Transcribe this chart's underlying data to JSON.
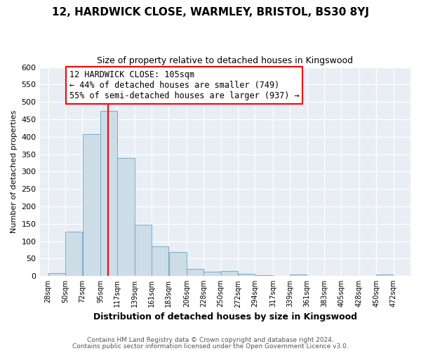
{
  "title": "12, HARDWICK CLOSE, WARMLEY, BRISTOL, BS30 8YJ",
  "subtitle": "Size of property relative to detached houses in Kingswood",
  "xlabel": "Distribution of detached houses by size in Kingswood",
  "ylabel": "Number of detached properties",
  "bar_left_edges": [
    28,
    50,
    72,
    95,
    117,
    139,
    161,
    183,
    206,
    228,
    250,
    272,
    294,
    317,
    339,
    361,
    383,
    405,
    428,
    450
  ],
  "bar_widths": [
    22,
    22,
    23,
    22,
    22,
    22,
    22,
    23,
    22,
    22,
    22,
    22,
    23,
    22,
    22,
    22,
    22,
    23,
    22,
    22
  ],
  "bar_heights": [
    8,
    127,
    407,
    475,
    340,
    147,
    86,
    69,
    20,
    13,
    15,
    7,
    3,
    0,
    4,
    0,
    0,
    0,
    0,
    4
  ],
  "bar_color": "#ccdde8",
  "bar_edge_color": "#7aaac8",
  "tick_labels": [
    "28sqm",
    "50sqm",
    "72sqm",
    "95sqm",
    "117sqm",
    "139sqm",
    "161sqm",
    "183sqm",
    "206sqm",
    "228sqm",
    "250sqm",
    "272sqm",
    "294sqm",
    "317sqm",
    "339sqm",
    "361sqm",
    "383sqm",
    "405sqm",
    "428sqm",
    "450sqm",
    "472sqm"
  ],
  "tick_positions": [
    28,
    50,
    72,
    95,
    117,
    139,
    161,
    183,
    206,
    228,
    250,
    272,
    294,
    317,
    339,
    361,
    383,
    405,
    428,
    450,
    472
  ],
  "ylim": [
    0,
    600
  ],
  "yticks": [
    0,
    50,
    100,
    150,
    200,
    250,
    300,
    350,
    400,
    450,
    500,
    550,
    600
  ],
  "red_line_x": 105,
  "annotation_title": "12 HARDWICK CLOSE: 105sqm",
  "annotation_line1": "← 44% of detached houses are smaller (749)",
  "annotation_line2": "55% of semi-detached houses are larger (937) →",
  "footer1": "Contains HM Land Registry data © Crown copyright and database right 2024.",
  "footer2": "Contains public sector information licensed under the Open Government Licence v3.0.",
  "bg_color": "#edf2f7",
  "plot_bg_color": "#e8eef4",
  "grid_color": "#ffffff",
  "fig_bg_color": "#ffffff"
}
